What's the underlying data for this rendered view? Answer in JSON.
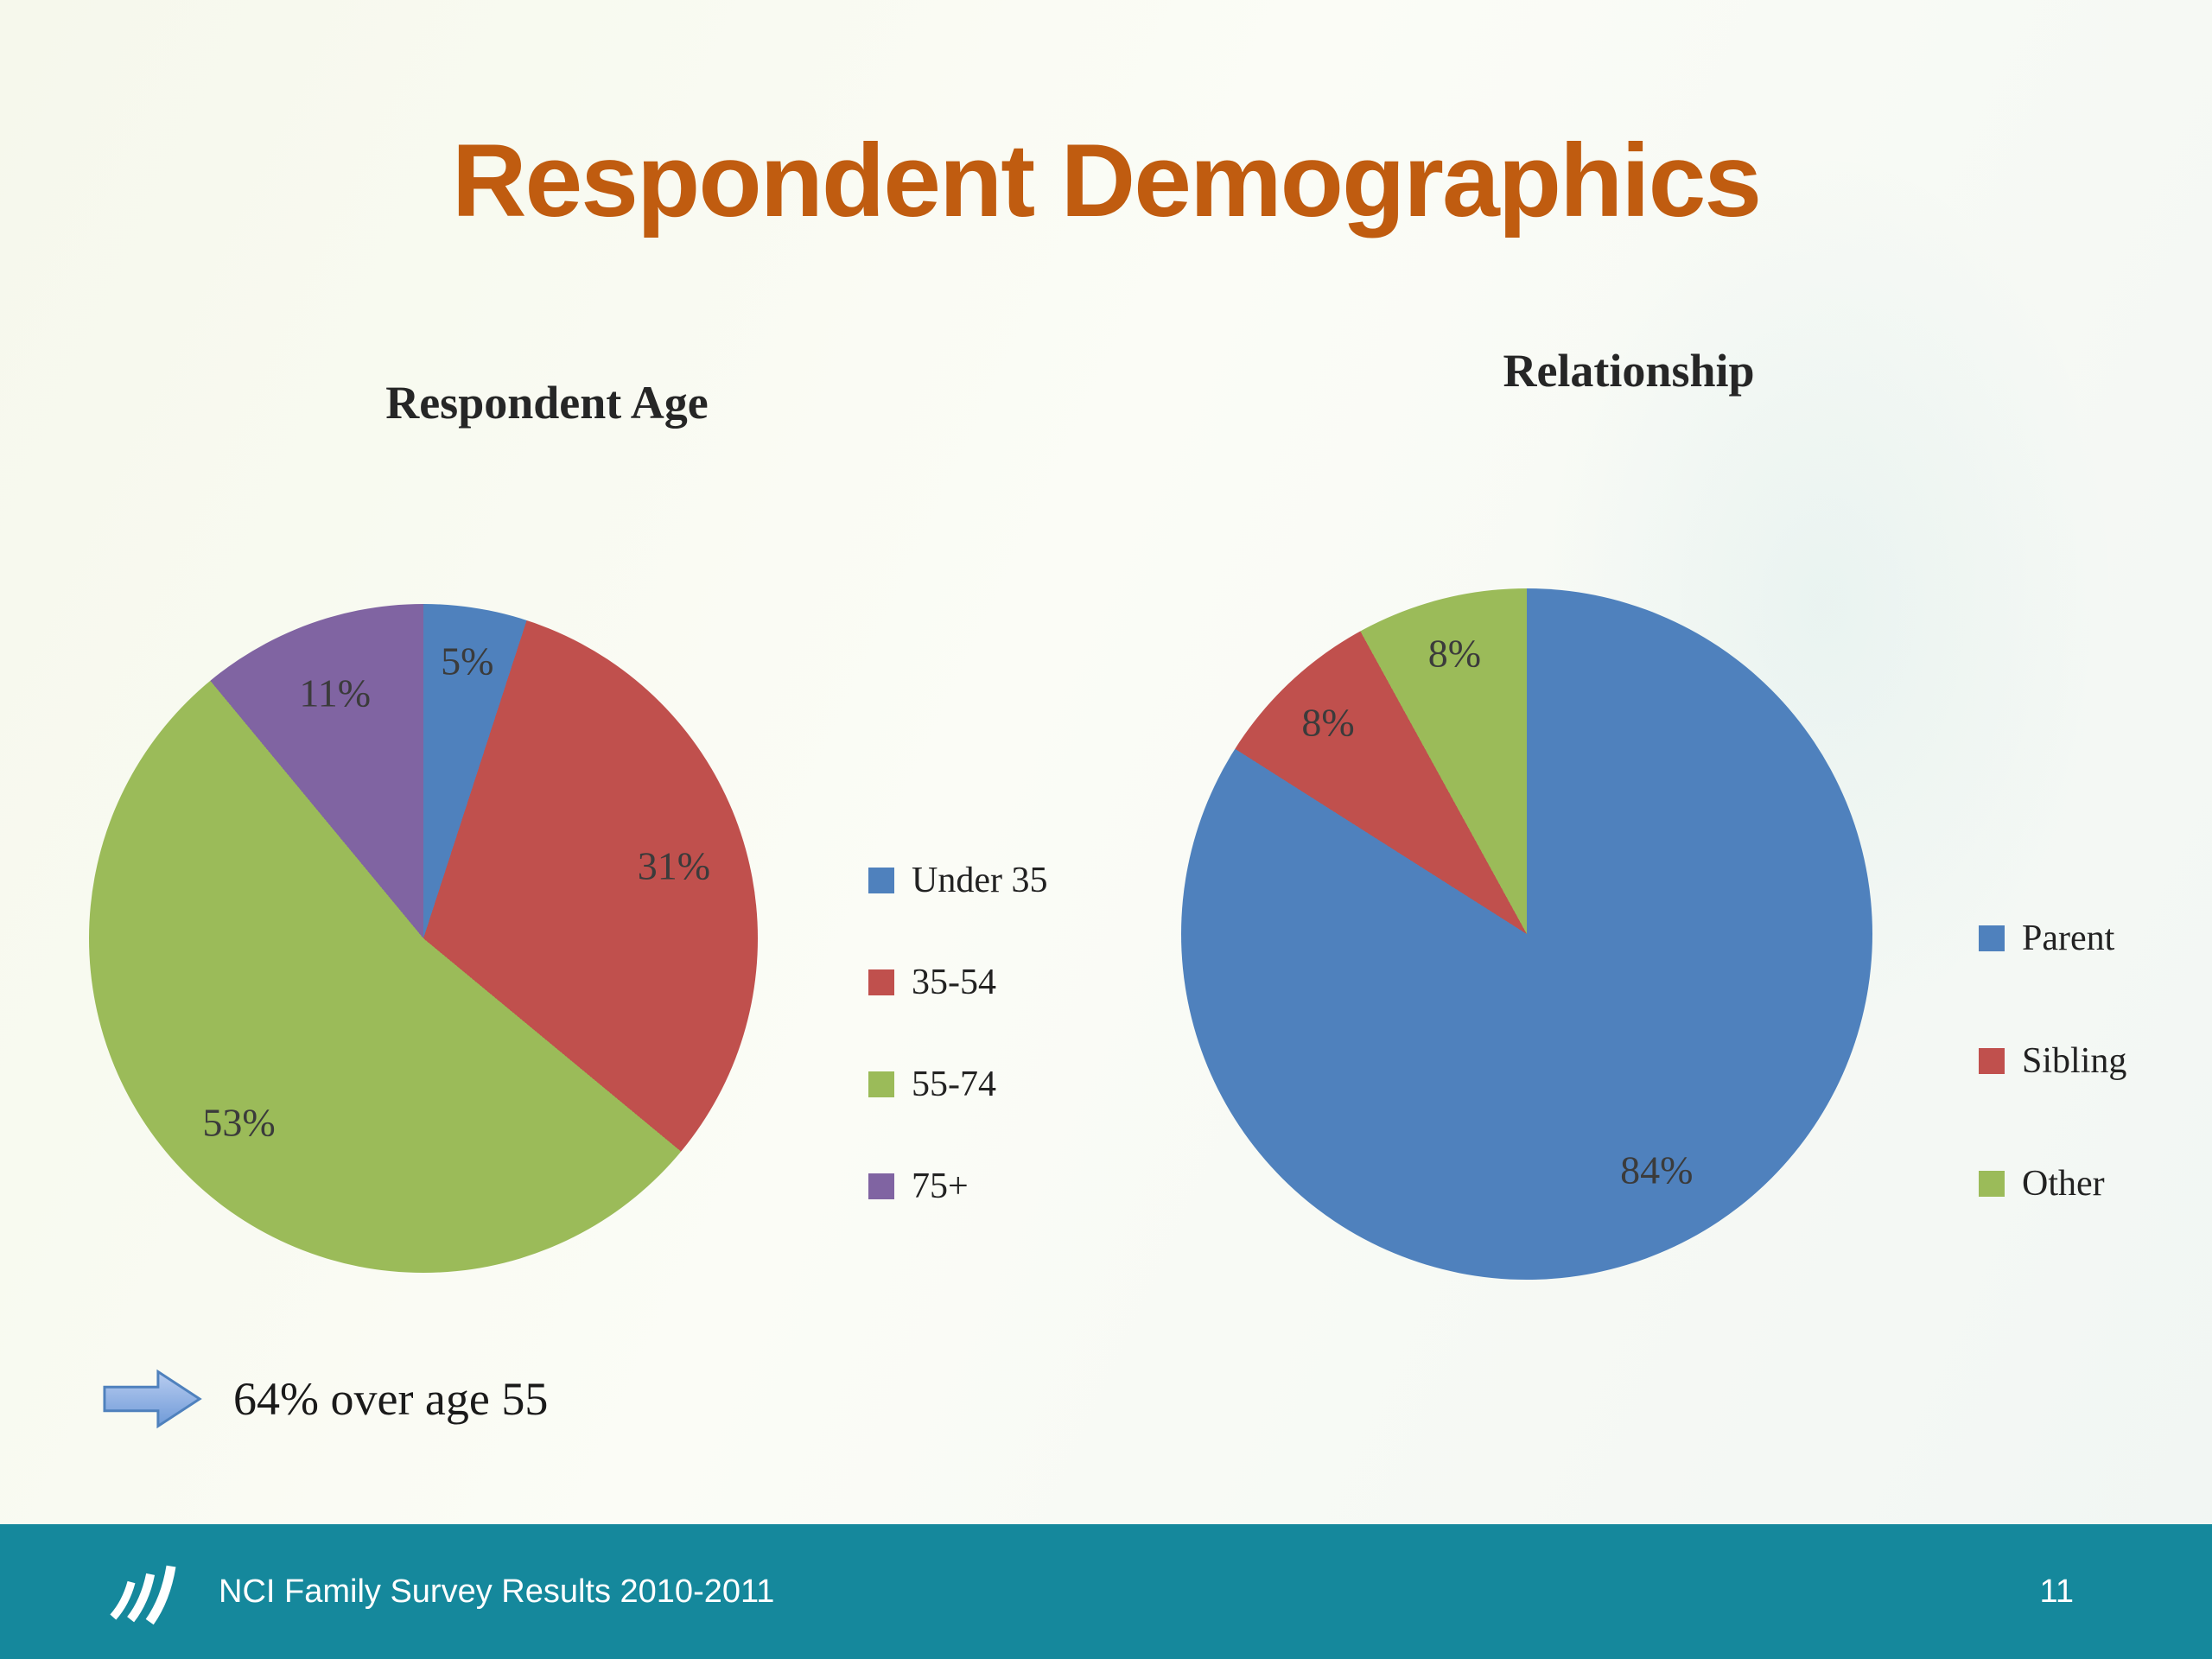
{
  "slide": {
    "title": "Respondent Demographics",
    "callout_text": "64% over age 55",
    "footer": {
      "text": "NCI Family Survey Results 2010-2011",
      "page": "11"
    }
  },
  "colors": {
    "title_orange": "#c05c10",
    "footer_teal": "#15889c",
    "arrow_blue": "#7da7dc",
    "series_blue": "#4F81BD",
    "series_red": "#C0504D",
    "series_green": "#9BBB59",
    "series_purple": "#8064A2"
  },
  "chart_data": [
    {
      "type": "pie",
      "title": "Respondent Age",
      "categories": [
        "Under 35",
        "35-54",
        "55-74",
        "75+"
      ],
      "values": [
        5,
        31,
        53,
        11
      ],
      "labels": [
        "5%",
        "31%",
        "53%",
        "11%"
      ],
      "colors": [
        "#4F81BD",
        "#C0504D",
        "#9BBB59",
        "#8064A2"
      ],
      "legend_position": "right",
      "start_angle_deg": 0,
      "direction": "clockwise"
    },
    {
      "type": "pie",
      "title": "Relationship",
      "categories": [
        "Parent",
        "Sibling",
        "Other"
      ],
      "values": [
        84,
        8,
        8
      ],
      "labels": [
        "84%",
        "8%",
        "8%"
      ],
      "colors": [
        "#4F81BD",
        "#C0504D",
        "#9BBB59"
      ],
      "legend_position": "right",
      "start_angle_deg": 0,
      "direction": "clockwise"
    }
  ]
}
